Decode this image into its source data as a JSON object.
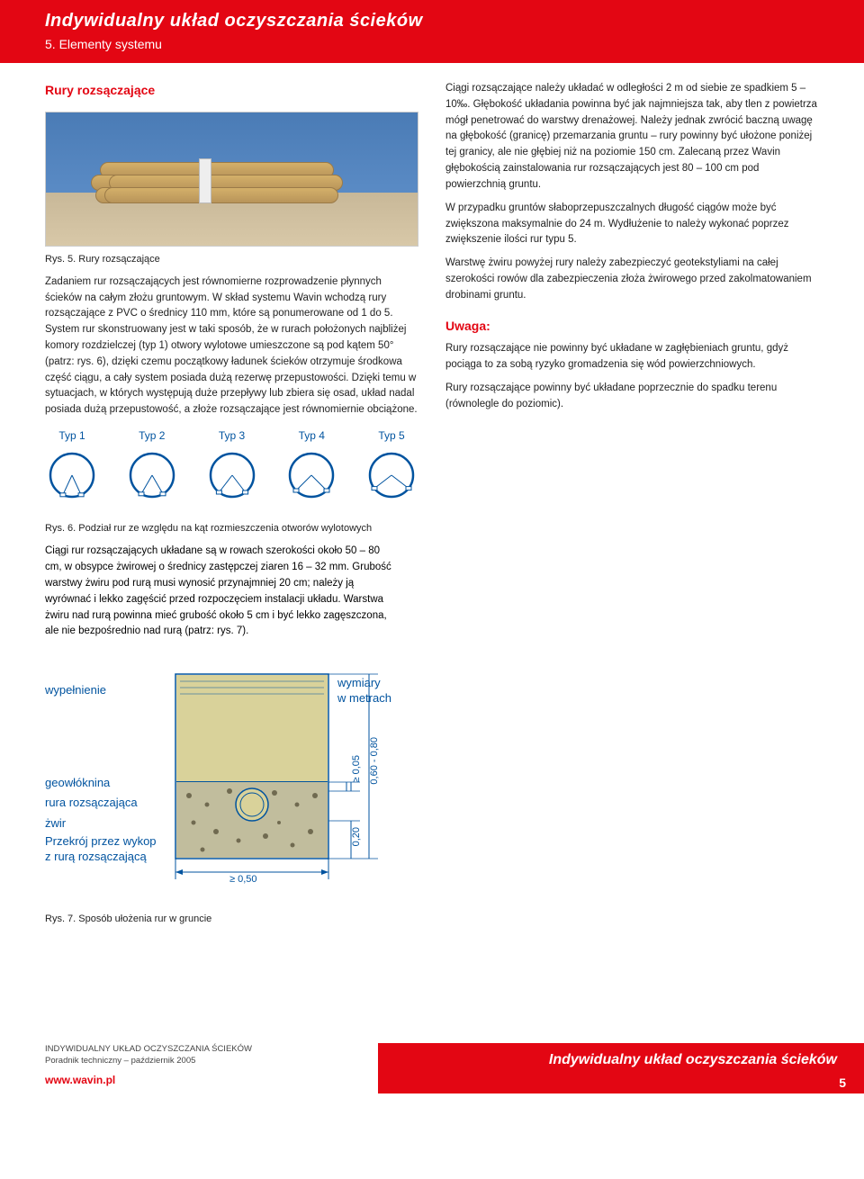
{
  "header": {
    "title": "Indywidualny układ oczyszczania ścieków",
    "subtitle": "5. Elementy systemu"
  },
  "leftCol": {
    "sectionTitle": "Rury rozsączające",
    "fig5Caption": "Rys. 5. Rury rozsączające",
    "para1": "Zadaniem rur rozsączających jest równomierne rozprowadzenie płynnych ścieków na całym złożu gruntowym. W skład systemu Wavin wchodzą rury rozsączające z PVC o średnicy 110 mm, które są ponumerowane od 1 do 5. System rur skonstruowany jest w taki sposób, że w rurach położonych najbliżej komory rozdzielczej (typ 1) otwory wylotowe umieszczone są pod kątem 50° (patrz: rys. 6), dzięki czemu początkowy ładunek ścieków otrzymuje środkowa część ciągu, a cały system posiada dużą rezerwę przepustowości. Dzięki temu w sytuacjach, w których występują duże przepływy lub zbiera się osad, układ nadal posiada dużą przepustowość, a złoże rozsączające jest równomiernie obciążone.",
    "types": [
      "Typ 1",
      "Typ 2",
      "Typ 3",
      "Typ 4",
      "Typ 5"
    ],
    "typeAngles": [
      50,
      60,
      75,
      90,
      105
    ],
    "fig6Caption": "Rys. 6. Podział rur ze względu na kąt rozmieszczenia otworów wylotowych",
    "para2": "Ciągi rur rozsączających układane są w rowach szerokości około 50 – 80 cm, w obsypce żwirowej o średnicy zastępczej ziaren 16 – 32 mm. Grubość warstwy żwiru pod rurą musi wynosić przynajmniej 20 cm; należy ją wyrównać i lekko zagęścić przed rozpoczęciem instalacji układu. Warstwa żwiru nad rurą powinna mieć grubość około 5 cm i być lekko zagęszczona, ale nie bezpośrednio nad rurą (patrz: rys. 7)."
  },
  "rightCol": {
    "para1": "Ciągi rozsączające należy układać w odległości 2 m od siebie ze spadkiem 5 – 10‰. Głębokość układania powinna być jak najmniejsza tak, aby tlen z powietrza mógł penetrować do warstwy drenażowej. Należy jednak zwrócić baczną uwagę na głębokość (granicę) przemarzania gruntu – rury powinny być ułożone poniżej tej granicy, ale nie głębiej niż na poziomie 150 cm. Zalecaną przez Wavin głębokością zainstalowania rur rozsączających jest 80 – 100 cm pod powierzchnią gruntu.",
    "para2": "W przypadku gruntów słaboprzepuszczalnych długość ciągów może być zwiększona maksymalnie do 24 m. Wydłużenie to należy wykonać poprzez zwiększenie ilości rur typu 5.",
    "para3": "Warstwę żwiru powyżej rury należy zabezpieczyć geotekstyliami na całej szerokości rowów dla zabezpieczenia złoża żwirowego przed zakolmatowaniem drobinami gruntu.",
    "uwagaTitle": "Uwaga:",
    "uwaga1": "Rury rozsączające nie powinny być układane w zagłębieniach gruntu, gdyż pociąga to za sobą ryzyko gromadzenia się wód powierzchniowych.",
    "uwaga2": "Rury rozsączające powinny być układane poprzecznie do spadku terenu (równolegle do poziomic)."
  },
  "fig7": {
    "labels": {
      "wypelnienie": "wypełnienie",
      "geowloknina": "geowłóknina",
      "rura": "rura rozsączająca",
      "zwir": "żwir",
      "przekroj": "Przekrój przez wykop z rurą rozsączającą",
      "wymiary": "wymiary\nw metrach"
    },
    "dims": {
      "width": "≥ 0,50",
      "top": "≥ 0,05",
      "depth": "0,60 - 0,80",
      "bottom": "0,20"
    },
    "caption": "Rys. 7. Sposób ułożenia rur w gruncie",
    "colors": {
      "fill_top": "#d8d098",
      "gravel": "#b8b090",
      "outline": "#00539f"
    }
  },
  "footer": {
    "line1": "INDYWIDUALNY UKŁAD OCZYSZCZANIA ŚCIEKÓW",
    "line2": "Poradnik techniczny – październik 2005",
    "url": "www.wavin.pl",
    "redTitle": "Indywidualny układ oczyszczania ścieków",
    "page": "5"
  },
  "colors": {
    "brand_red": "#e30613",
    "brand_blue": "#00539f"
  }
}
